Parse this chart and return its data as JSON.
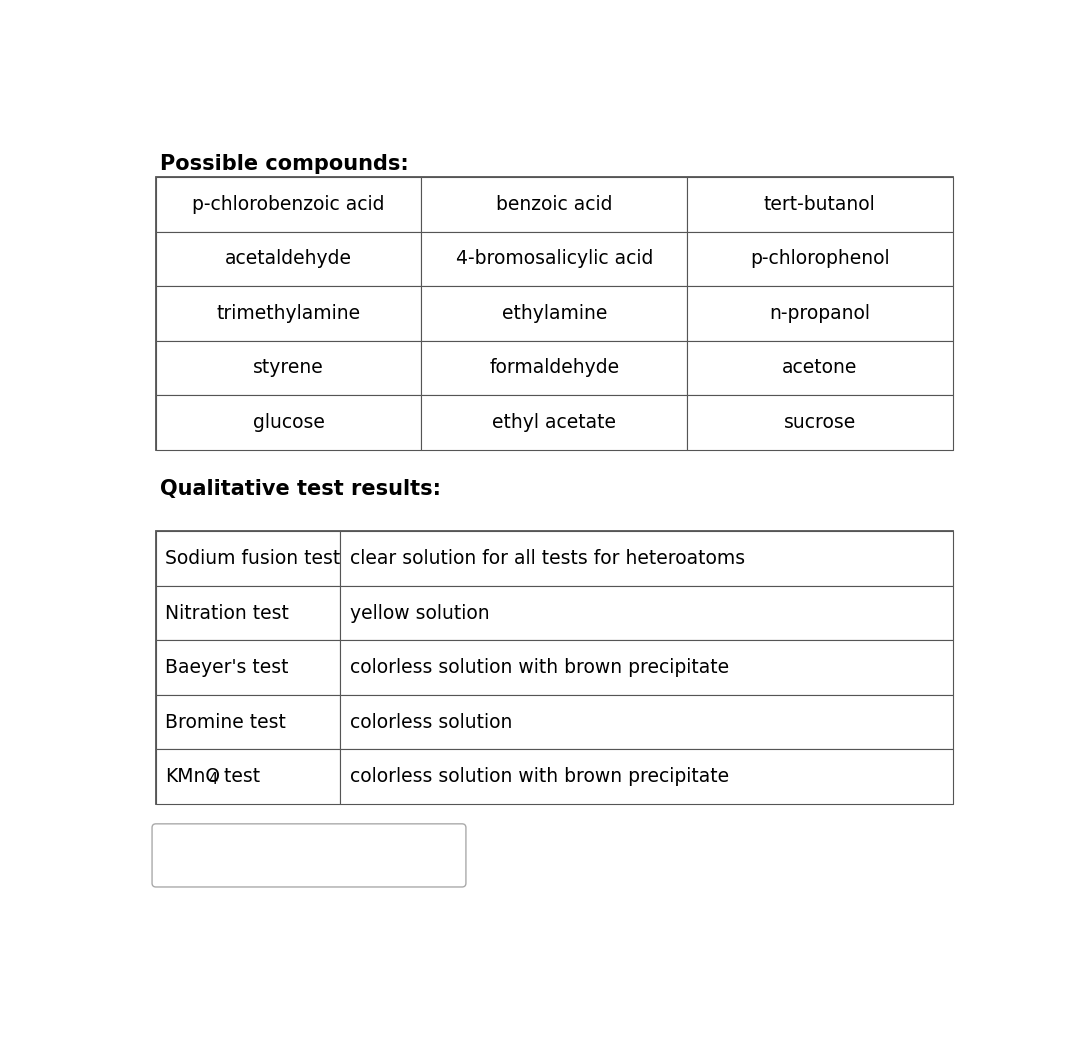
{
  "title1": "Possible compounds:",
  "title2": "Qualitative test results:",
  "compounds_table": [
    [
      "p-chlorobenzoic acid",
      "benzoic acid",
      "tert-butanol"
    ],
    [
      "acetaldehyde",
      "4-bromosalicylic acid",
      "p-chlorophenol"
    ],
    [
      "trimethylamine",
      "ethylamine",
      "n-propanol"
    ],
    [
      "styrene",
      "formaldehyde",
      "acetone"
    ],
    [
      "glucose",
      "ethyl acetate",
      "sucrose"
    ]
  ],
  "qualitative_table_left": [
    "Sodium fusion test",
    "Nitration test",
    "Baeyer's test",
    "Bromine test",
    "KMnO4 test"
  ],
  "qualitative_table_right": [
    "clear solution for all tests for heteroatoms",
    "yellow solution",
    "colorless solution with brown precipitate",
    "colorless solution",
    "colorless solution with brown precipitate"
  ],
  "bg_color": "#ffffff",
  "text_color": "#000000",
  "border_color": "#555555",
  "title_fontsize": 15,
  "cell_fontsize": 13.5,
  "fig_width": 10.8,
  "fig_height": 10.39
}
